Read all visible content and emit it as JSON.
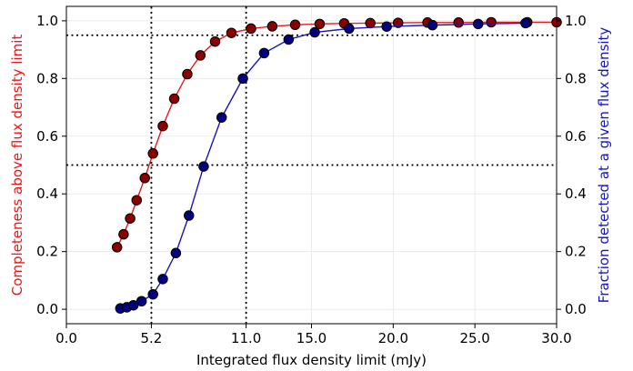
{
  "chart_data": {
    "type": "line",
    "xlabel": "Integrated flux density limit (mJy)",
    "ylabel_left": "Completeness above flux density limit",
    "ylabel_right": "Fraction detected at a given flux density",
    "xlim": [
      0,
      30
    ],
    "ylim": [
      -0.05,
      1.05
    ],
    "x_ticks": [
      0.0,
      5.2,
      11.0,
      15.0,
      20.0,
      25.0,
      30.0
    ],
    "x_tick_labels": [
      "0.0",
      "5.2",
      "11.0",
      "15.0",
      "20.0",
      "25.0",
      "30.0"
    ],
    "y_ticks": [
      0.0,
      0.2,
      0.4,
      0.6,
      0.8,
      1.0
    ],
    "y_tick_labels_left": [
      "0.0",
      "0.2",
      "0.4",
      "0.6",
      "0.8",
      "1.0"
    ],
    "y_tick_labels_right": [
      "0.0",
      "0.2",
      "0.4",
      "0.6",
      "0.8",
      "1.0"
    ],
    "grid": true,
    "colors": {
      "left_axis": "#e8191c",
      "right_axis": "#1515c0",
      "completeness_line": "#e8191c",
      "completeness_fill": "#8b0000",
      "fraction_line": "#1515c0",
      "fraction_fill": "#000080",
      "marker_edge": "#000000",
      "reference_lines": "#000000",
      "grid": "#e6e6e6"
    },
    "series": [
      {
        "axis": "left",
        "x": [
          3.1,
          3.5,
          3.9,
          4.3,
          4.8,
          5.3,
          5.9,
          6.6,
          7.4,
          8.2,
          9.1,
          10.1,
          11.3,
          12.6,
          14.0,
          15.5,
          17.0,
          18.6,
          20.3,
          22.1,
          24.0,
          26.0,
          28.2,
          30.0
        ],
        "values": [
          0.215,
          0.26,
          0.315,
          0.378,
          0.455,
          0.54,
          0.635,
          0.73,
          0.815,
          0.88,
          0.928,
          0.958,
          0.973,
          0.981,
          0.986,
          0.989,
          0.991,
          0.992,
          0.993,
          0.994,
          0.994,
          0.995,
          0.995,
          0.995
        ]
      },
      {
        "axis": "right",
        "x": [
          3.3,
          3.7,
          4.1,
          4.6,
          5.3,
          5.9,
          6.7,
          7.5,
          8.4,
          9.5,
          10.8,
          12.1,
          13.6,
          15.2,
          17.3,
          19.6,
          22.4,
          25.2,
          28.1
        ],
        "values": [
          0.003,
          0.007,
          0.014,
          0.028,
          0.052,
          0.105,
          0.195,
          0.325,
          0.495,
          0.665,
          0.8,
          0.888,
          0.935,
          0.96,
          0.973,
          0.98,
          0.985,
          0.989,
          0.992
        ]
      }
    ],
    "reference_lines": {
      "horizontal": [
        0.5,
        0.95
      ],
      "vertical": [
        5.2,
        11.0
      ]
    }
  }
}
